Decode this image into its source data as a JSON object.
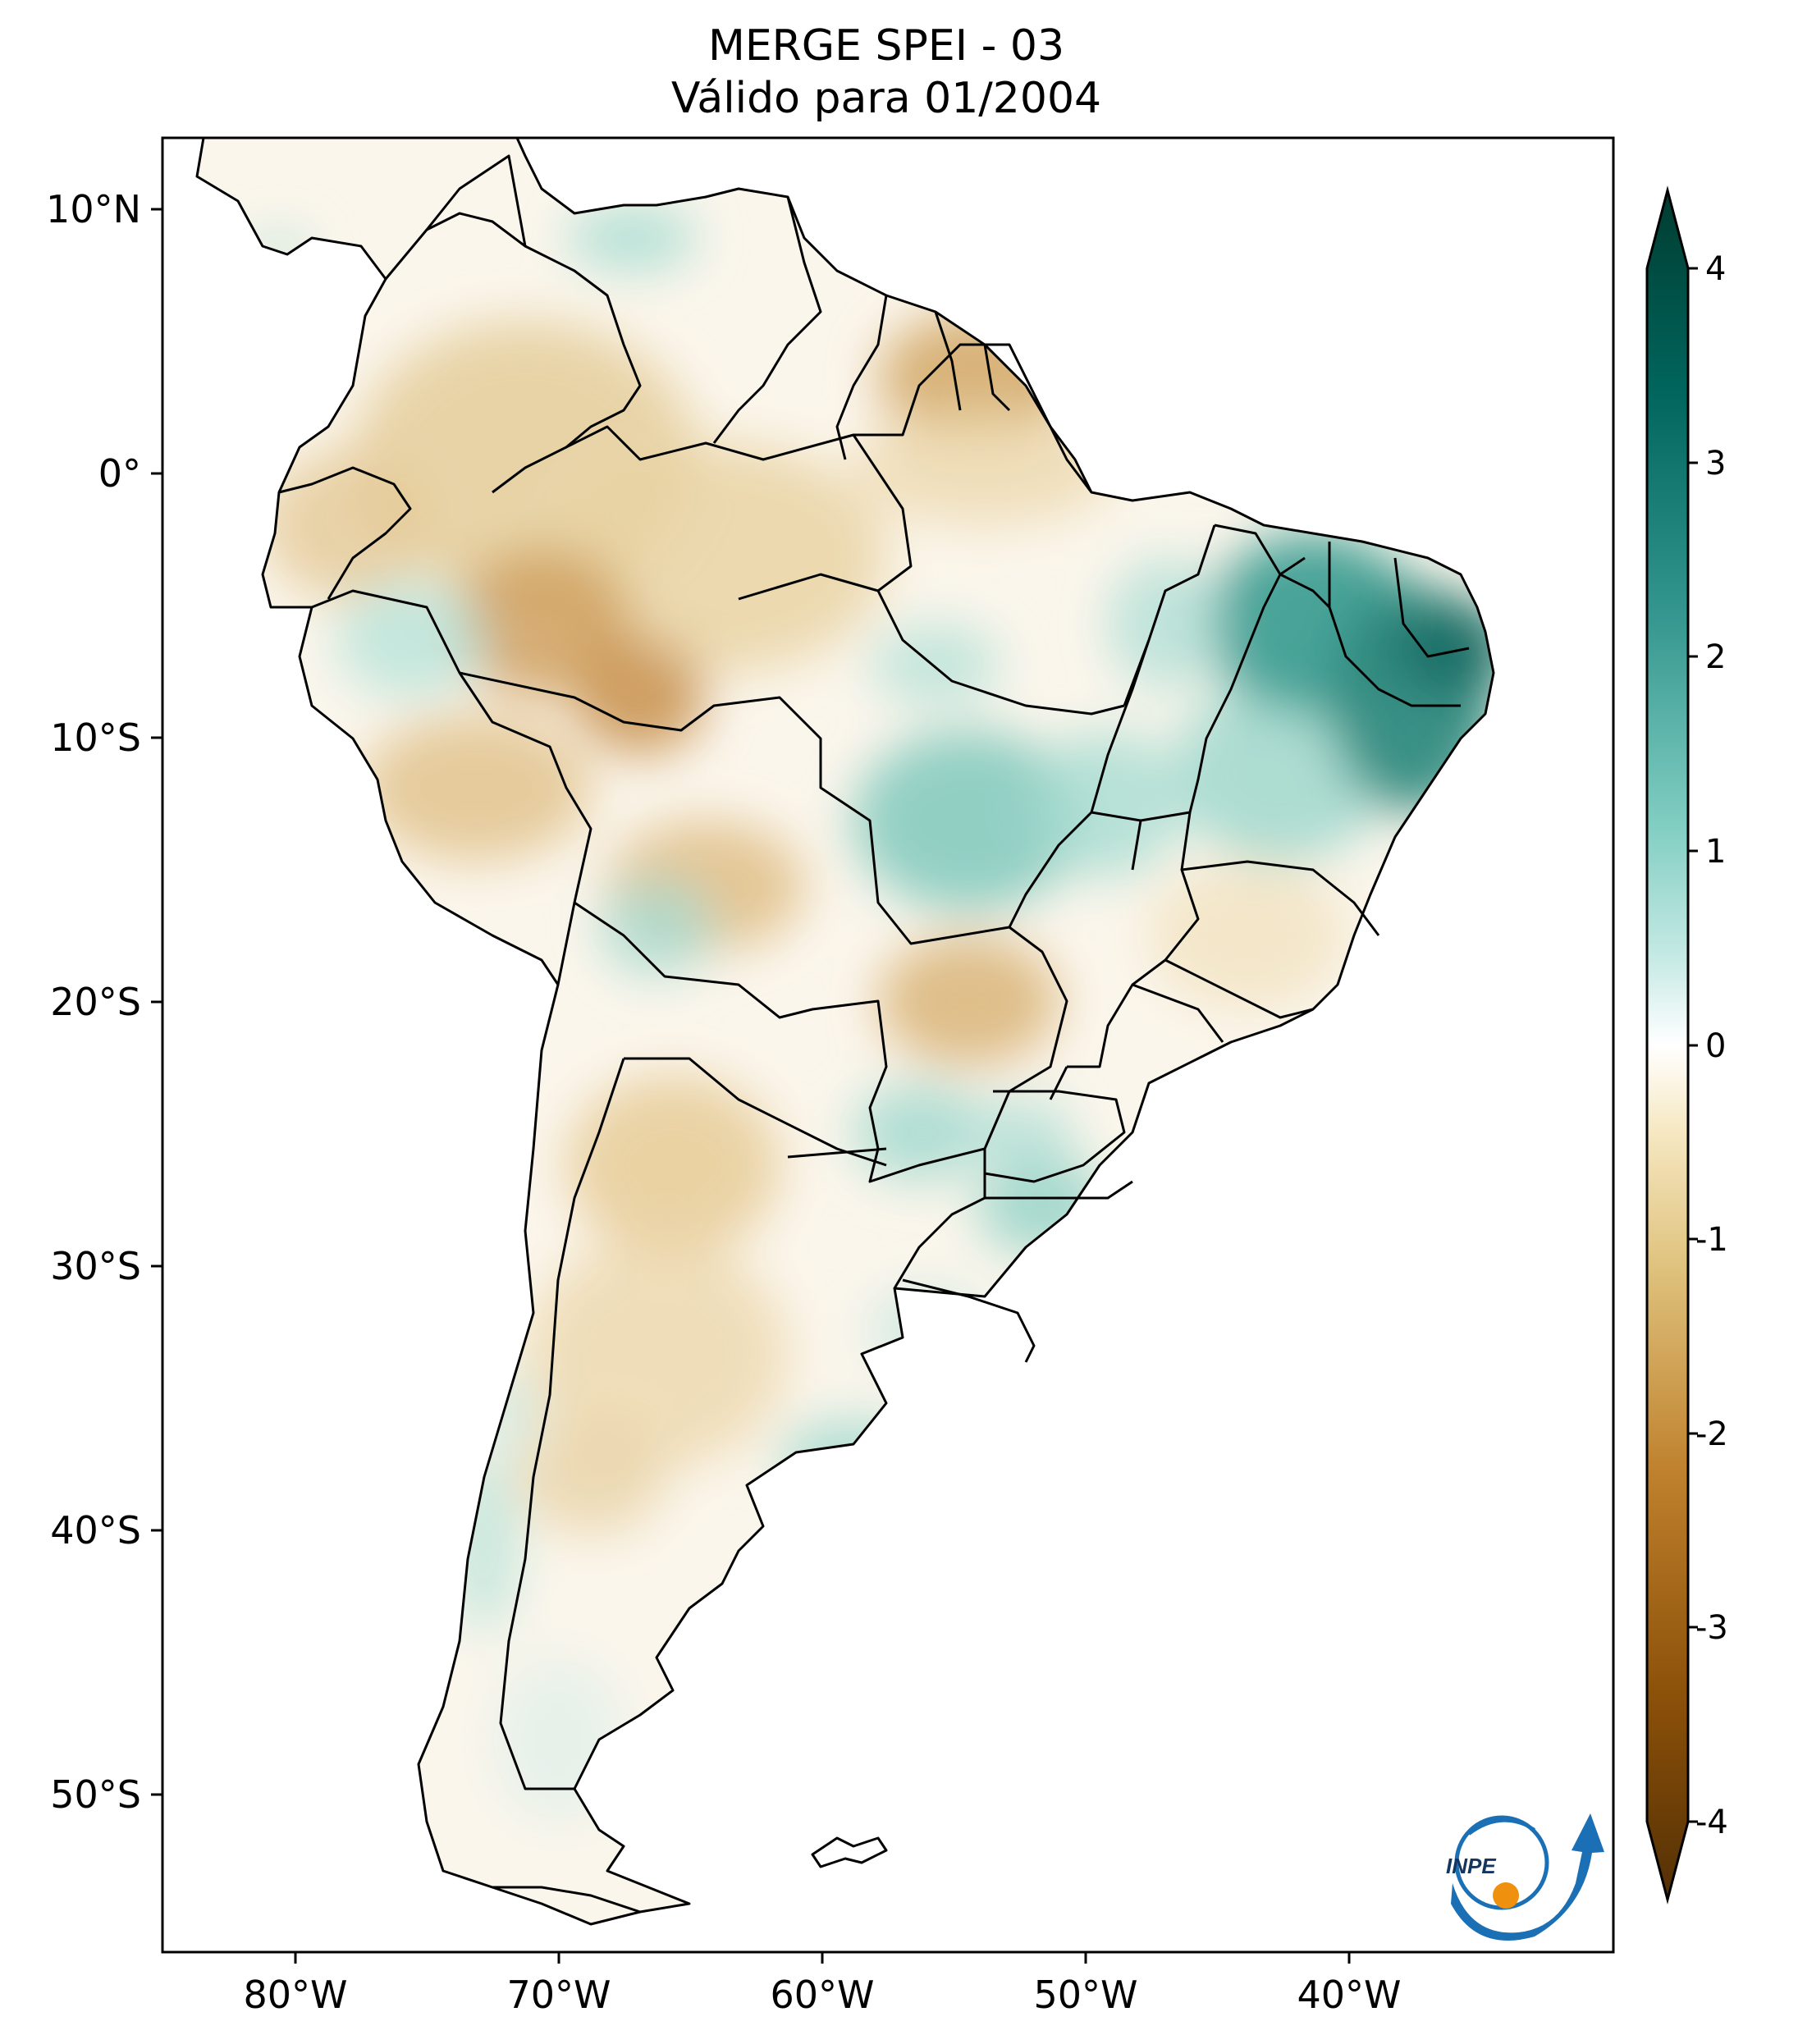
{
  "title": {
    "line1": "MERGE   SPEI - 03",
    "line2": "Válido para 01/2004"
  },
  "axes": {
    "lon_ticks": [
      "80°W",
      "70°W",
      "60°W",
      "50°W",
      "40°W"
    ],
    "lat_ticks": [
      "10°N",
      "0°",
      "10°S",
      "20°S",
      "30°S",
      "40°S",
      "50°S"
    ],
    "lon_range": [
      -85,
      -30
    ],
    "lat_range": [
      -57,
      13
    ]
  },
  "colorbar": {
    "ticks": [
      "4",
      "3",
      "2",
      "1",
      "0",
      "-1",
      "-2",
      "-3",
      "-4"
    ],
    "min": -4,
    "max": 4,
    "extend": "both",
    "colors": {
      "dry_extreme": "#543005",
      "dry_strong": "#8c5109",
      "dry_mid": "#bf812d",
      "dry_light": "#dfc27d",
      "dry_faint": "#f6e8c3",
      "neutral": "#ffffff",
      "wet_faint": "#c7eae5",
      "wet_light": "#80cdc1",
      "wet_mid": "#35978f",
      "wet_strong": "#01665e",
      "wet_extreme": "#003c30"
    }
  },
  "logo": {
    "text": "INPE"
  }
}
